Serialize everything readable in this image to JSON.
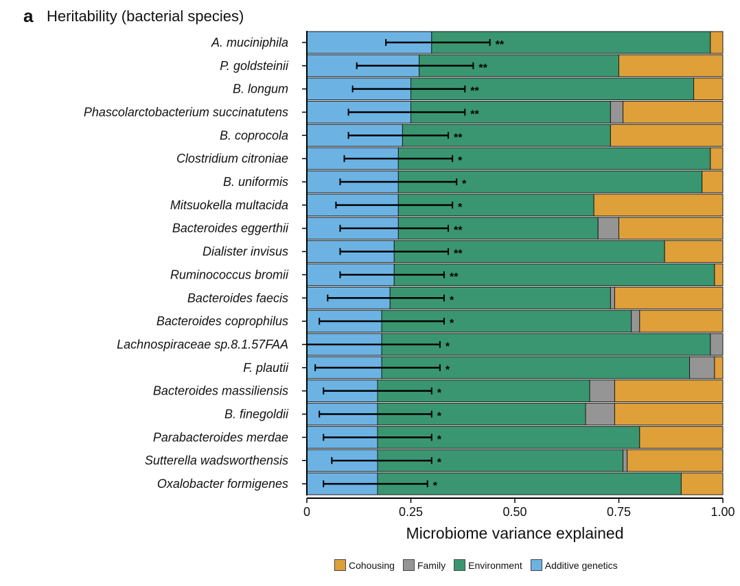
{
  "header": {
    "panel_letter": "a",
    "title": "Heritability (bacterial species)"
  },
  "chart_data": {
    "type": "bar",
    "orientation": "horizontal",
    "stacked": true,
    "xlabel": "Microbiome variance explained",
    "xlim": [
      0,
      1
    ],
    "xticks": [
      0,
      0.25,
      0.5,
      0.75,
      1.0
    ],
    "xtick_labels": [
      "0",
      "0.25",
      "0.50",
      "0.75",
      "1.00"
    ],
    "grid": false,
    "legend_position": "bottom-right",
    "categories": [
      "A. muciniphila",
      "P. goldsteinii",
      "B. longum",
      "Phascolarctobacterium succinatutens",
      "B. coprocola",
      "Clostridium citroniae",
      "B. uniformis",
      "Mitsuokella multacida",
      "Bacteroides eggerthii",
      "Dialister invisus",
      "Ruminococcus bromii",
      "Bacteroides faecis",
      "Bacteroides coprophilus",
      "Lachnospiraceae sp.8.1.57FAA",
      "F. plautii",
      "Bacteroides massiliensis",
      "B. finegoldii",
      "Parabacteroides merdae",
      "Sutterella wadsworthensis",
      "Oxalobacter formigenes"
    ],
    "series": [
      {
        "name": "Additive genetics",
        "color": "#6cb3e4",
        "values": [
          0.3,
          0.27,
          0.25,
          0.25,
          0.23,
          0.22,
          0.22,
          0.22,
          0.22,
          0.21,
          0.21,
          0.2,
          0.18,
          0.18,
          0.18,
          0.17,
          0.17,
          0.17,
          0.17,
          0.17
        ]
      },
      {
        "name": "Environment",
        "color": "#3a9670",
        "values": [
          0.67,
          0.48,
          0.68,
          0.48,
          0.5,
          0.75,
          0.73,
          0.47,
          0.48,
          0.65,
          0.77,
          0.53,
          0.6,
          0.79,
          0.74,
          0.51,
          0.5,
          0.63,
          0.59,
          0.73
        ]
      },
      {
        "name": "Family",
        "color": "#959595",
        "values": [
          0.0,
          0.0,
          0.0,
          0.03,
          0.0,
          0.0,
          0.0,
          0.0,
          0.05,
          0.0,
          0.0,
          0.01,
          0.02,
          0.03,
          0.06,
          0.06,
          0.07,
          0.0,
          0.01,
          0.0
        ]
      },
      {
        "name": "Cohousing",
        "color": "#dfa03a",
        "values": [
          0.03,
          0.25,
          0.07,
          0.24,
          0.27,
          0.03,
          0.05,
          0.31,
          0.25,
          0.14,
          0.02,
          0.26,
          0.2,
          0.0,
          0.02,
          0.26,
          0.26,
          0.2,
          0.23,
          0.1
        ]
      }
    ],
    "error_bars": {
      "series": "Additive genetics",
      "low": [
        0.19,
        0.12,
        0.11,
        0.1,
        0.1,
        0.09,
        0.08,
        0.07,
        0.08,
        0.08,
        0.08,
        0.05,
        0.03,
        0.0,
        0.02,
        0.04,
        0.03,
        0.04,
        0.06,
        0.04
      ],
      "high": [
        0.44,
        0.4,
        0.38,
        0.38,
        0.34,
        0.35,
        0.36,
        0.35,
        0.34,
        0.34,
        0.33,
        0.33,
        0.33,
        0.32,
        0.32,
        0.3,
        0.3,
        0.3,
        0.3,
        0.29
      ]
    },
    "significance": [
      "**",
      "**",
      "**",
      "**",
      "**",
      "*",
      "*",
      "*",
      "**",
      "**",
      "**",
      "*",
      "*",
      "*",
      "*",
      "*",
      "*",
      "*",
      "*",
      "*"
    ],
    "legend": [
      "Cohousing",
      "Family",
      "Environment",
      "Additive genetics"
    ]
  }
}
